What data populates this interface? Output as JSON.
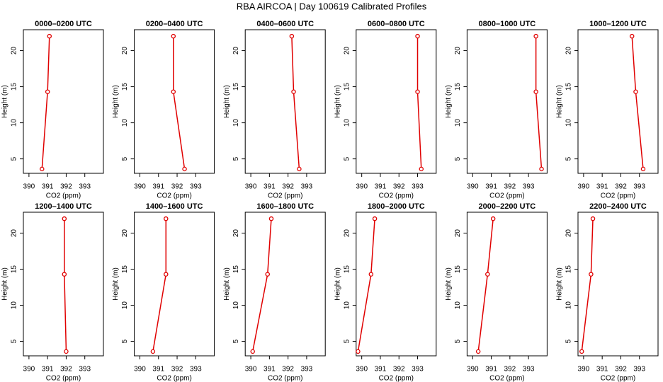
{
  "title": "RBA AIRCOA |  Day 100619  Calibrated Profiles",
  "chart_data": [
    {
      "type": "line",
      "title": "0000–0200 UTC",
      "xlabel": "CO2 (ppm)",
      "ylabel": "Height (m)",
      "x": [
        390.7,
        391.0,
        391.1
      ],
      "y": [
        3.6,
        14.3,
        22.0
      ],
      "color": "#e00000",
      "xlim": [
        389.7,
        394.0
      ],
      "ylim": [
        3.0,
        22.9
      ],
      "xticks": [
        390,
        391,
        392,
        393
      ],
      "yticks": [
        5,
        10,
        15,
        20
      ]
    },
    {
      "type": "line",
      "title": "0200–0400 UTC",
      "xlabel": "CO2 (ppm)",
      "ylabel": "Height (m)",
      "x": [
        392.4,
        391.8,
        391.8
      ],
      "y": [
        3.6,
        14.3,
        22.0
      ],
      "color": "#e00000",
      "xlim": [
        389.7,
        394.0
      ],
      "ylim": [
        3.0,
        22.9
      ],
      "xticks": [
        390,
        391,
        392,
        393
      ],
      "yticks": [
        5,
        10,
        15,
        20
      ]
    },
    {
      "type": "line",
      "title": "0400–0600 UTC",
      "xlabel": "CO2 (ppm)",
      "ylabel": "Height (m)",
      "x": [
        392.6,
        392.3,
        392.2
      ],
      "y": [
        3.6,
        14.3,
        22.0
      ],
      "color": "#e00000",
      "xlim": [
        389.7,
        394.0
      ],
      "ylim": [
        3.0,
        22.9
      ],
      "xticks": [
        390,
        391,
        392,
        393
      ],
      "yticks": [
        5,
        10,
        15,
        20
      ]
    },
    {
      "type": "line",
      "title": "0600–0800 UTC",
      "xlabel": "CO2 (ppm)",
      "ylabel": "Height (m)",
      "x": [
        393.2,
        393.0,
        393.0
      ],
      "y": [
        3.6,
        14.3,
        22.0
      ],
      "color": "#e00000",
      "xlim": [
        389.7,
        394.0
      ],
      "ylim": [
        3.0,
        22.9
      ],
      "xticks": [
        390,
        391,
        392,
        393
      ],
      "yticks": [
        5,
        10,
        15,
        20
      ]
    },
    {
      "type": "line",
      "title": "0800–1000 UTC",
      "xlabel": "CO2 (ppm)",
      "ylabel": "Height (m)",
      "x": [
        393.7,
        393.4,
        393.4
      ],
      "y": [
        3.6,
        14.3,
        22.0
      ],
      "color": "#e00000",
      "xlim": [
        389.7,
        394.0
      ],
      "ylim": [
        3.0,
        22.9
      ],
      "xticks": [
        390,
        391,
        392,
        393
      ],
      "yticks": [
        5,
        10,
        15,
        20
      ]
    },
    {
      "type": "line",
      "title": "1000–1200 UTC",
      "xlabel": "CO2 (ppm)",
      "ylabel": "Height (m)",
      "x": [
        393.2,
        392.8,
        392.6
      ],
      "y": [
        3.6,
        14.3,
        22.0
      ],
      "color": "#e00000",
      "xlim": [
        389.7,
        394.0
      ],
      "ylim": [
        3.0,
        22.9
      ],
      "xticks": [
        390,
        391,
        392,
        393
      ],
      "yticks": [
        5,
        10,
        15,
        20
      ]
    },
    {
      "type": "line",
      "title": "1200–1400 UTC",
      "xlabel": "CO2 (ppm)",
      "ylabel": "Height (m)",
      "x": [
        392.0,
        391.9,
        391.9
      ],
      "y": [
        3.6,
        14.3,
        22.0
      ],
      "color": "#e00000",
      "xlim": [
        389.7,
        394.0
      ],
      "ylim": [
        3.0,
        22.9
      ],
      "xticks": [
        390,
        391,
        392,
        393
      ],
      "yticks": [
        5,
        10,
        15,
        20
      ]
    },
    {
      "type": "line",
      "title": "1400–1600 UTC",
      "xlabel": "CO2 (ppm)",
      "ylabel": "Height (m)",
      "x": [
        390.7,
        391.4,
        391.4
      ],
      "y": [
        3.6,
        14.3,
        22.0
      ],
      "color": "#e00000",
      "xlim": [
        389.7,
        394.0
      ],
      "ylim": [
        3.0,
        22.9
      ],
      "xticks": [
        390,
        391,
        392,
        393
      ],
      "yticks": [
        5,
        10,
        15,
        20
      ]
    },
    {
      "type": "line",
      "title": "1600–1800 UTC",
      "xlabel": "CO2 (ppm)",
      "ylabel": "Height (m)",
      "x": [
        390.1,
        390.9,
        391.1
      ],
      "y": [
        3.6,
        14.3,
        22.0
      ],
      "color": "#e00000",
      "xlim": [
        389.7,
        394.0
      ],
      "ylim": [
        3.0,
        22.9
      ],
      "xticks": [
        390,
        391,
        392,
        393
      ],
      "yticks": [
        5,
        10,
        15,
        20
      ]
    },
    {
      "type": "line",
      "title": "1800–2000 UTC",
      "xlabel": "CO2 (ppm)",
      "ylabel": "Height (m)",
      "x": [
        389.8,
        390.5,
        390.7
      ],
      "y": [
        3.6,
        14.3,
        22.0
      ],
      "color": "#e00000",
      "xlim": [
        389.7,
        394.0
      ],
      "ylim": [
        3.0,
        22.9
      ],
      "xticks": [
        390,
        391,
        392,
        393
      ],
      "yticks": [
        5,
        10,
        15,
        20
      ]
    },
    {
      "type": "line",
      "title": "2000–2200 UTC",
      "xlabel": "CO2 (ppm)",
      "ylabel": "Height (m)",
      "x": [
        390.3,
        390.8,
        391.1
      ],
      "y": [
        3.6,
        14.3,
        22.0
      ],
      "color": "#e00000",
      "xlim": [
        389.7,
        394.0
      ],
      "ylim": [
        3.0,
        22.9
      ],
      "xticks": [
        390,
        391,
        392,
        393
      ],
      "yticks": [
        5,
        10,
        15,
        20
      ]
    },
    {
      "type": "line",
      "title": "2200–2400 UTC",
      "xlabel": "CO2 (ppm)",
      "ylabel": "Height (m)",
      "x": [
        389.9,
        390.4,
        390.5
      ],
      "y": [
        3.6,
        14.3,
        22.0
      ],
      "color": "#e00000",
      "xlim": [
        389.7,
        394.0
      ],
      "ylim": [
        3.0,
        22.9
      ],
      "xticks": [
        390,
        391,
        392,
        393
      ],
      "yticks": [
        5,
        10,
        15,
        20
      ]
    }
  ]
}
